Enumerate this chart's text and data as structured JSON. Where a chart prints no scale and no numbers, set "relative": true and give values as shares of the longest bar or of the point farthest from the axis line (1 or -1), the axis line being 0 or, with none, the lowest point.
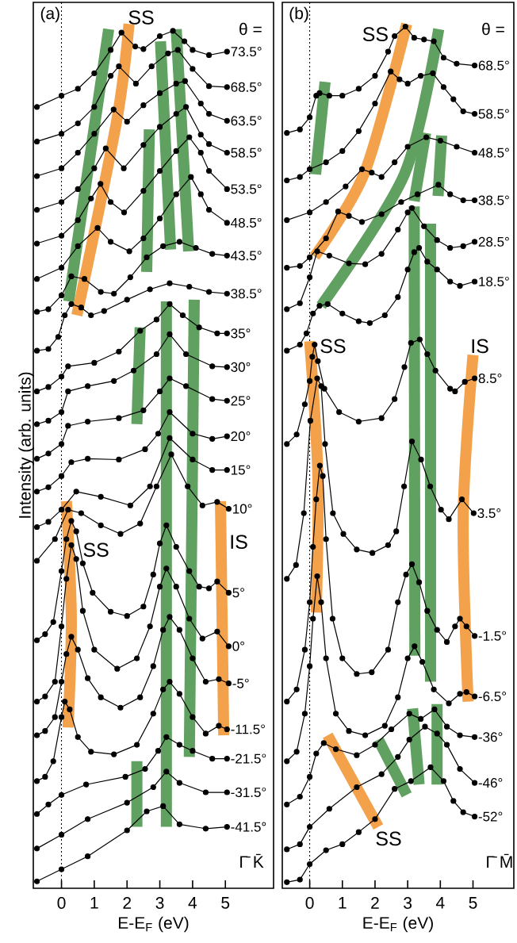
{
  "chart_data": [
    {
      "type": "line",
      "relative": true,
      "marker": "circle",
      "xlim": [
        -0.86,
        6.47
      ],
      "xticks": [
        0,
        1,
        2,
        3,
        4,
        5
      ],
      "xlabel": "E-E$_{F}$ (eV)",
      "ylabel": "Intensity (arb. units)",
      "ref_lines": [
        {
          "axis": "x",
          "value": 0,
          "line_style": "dotted"
        }
      ],
      "annotations": [
        "(a)",
        "θ =",
        "Γ̄ K̄",
        "SS",
        "SS",
        "IS"
      ],
      "series": [
        {
          "color": "#60a060",
          "marker": "none",
          "x": [
            1.44,
            0.22
          ],
          "values": [
            0.994,
            0.679
          ]
        },
        {
          "color": "#f3a24b",
          "marker": "none",
          "x": [
            2.06,
            1.68,
            0.47
          ],
          "values": [
            1.0,
            0.887,
            0.663
          ]
        },
        {
          "color": "#60a060",
          "marker": "none",
          "x": [
            2.68,
            2.6
          ],
          "values": [
            0.878,
            0.713
          ]
        },
        {
          "color": "#60a060",
          "marker": "none",
          "x": [
            3.02,
            3.33
          ],
          "values": [
            0.98,
            0.739
          ]
        },
        {
          "color": "#60a060",
          "marker": "none",
          "x": [
            3.5,
            3.88
          ],
          "values": [
            0.994,
            0.737
          ]
        },
        {
          "color": "#60a060",
          "marker": "none",
          "x": [
            2.4,
            2.3
          ],
          "values": [
            0.649,
            0.537
          ]
        },
        {
          "color": "#60a060",
          "marker": "none",
          "x": [
            3.2,
            3.2
          ],
          "values": [
            0.679,
            0.071
          ]
        },
        {
          "color": "#60a060",
          "marker": "none",
          "x": [
            4.05,
            3.9
          ],
          "values": [
            0.681,
            0.152
          ]
        },
        {
          "color": "#f3a24b",
          "marker": "none",
          "x": [
            4.85,
            4.95
          ],
          "values": [
            0.448,
            0.177
          ]
        },
        {
          "color": "#f3a24b",
          "marker": "none",
          "x": [
            0.15,
            0.3,
            0.2
          ],
          "values": [
            0.448,
            0.312,
            0.186
          ]
        },
        {
          "color": "#60a060",
          "marker": "none",
          "x": [
            2.3,
            2.3
          ],
          "values": [
            0.147,
            0.071
          ]
        },
        {
          "name": "73.5°",
          "color": "#000000",
          "x": [
            -0.75,
            0,
            0.5,
            1,
            1.5,
            1.83,
            2.25,
            2.5,
            3,
            3.4,
            3.75,
            4,
            4.5,
            5.05
          ],
          "values": [
            0.904,
            0.917,
            0.925,
            0.943,
            0.97,
            0.99,
            0.974,
            0.971,
            0.986,
            0.992,
            0.98,
            0.97,
            0.964,
            0.968
          ]
        },
        {
          "name": "68.5°",
          "color": "#000000",
          "x": [
            -0.75,
            0,
            0.5,
            1,
            1.5,
            1.75,
            2.27,
            2.75,
            3.25,
            3.55,
            4,
            4.5,
            5.05
          ],
          "values": [
            0.864,
            0.873,
            0.885,
            0.904,
            0.94,
            0.951,
            0.931,
            0.951,
            0.966,
            0.97,
            0.948,
            0.928,
            0.927
          ]
        },
        {
          "name": "63.5°",
          "color": "#000000",
          "x": [
            -0.75,
            0,
            0.5,
            1,
            1.59,
            2.0,
            2.5,
            3,
            3.5,
            3.77,
            4.25,
            4.5,
            5.05
          ],
          "values": [
            0.824,
            0.833,
            0.851,
            0.873,
            0.901,
            0.887,
            0.906,
            0.92,
            0.931,
            0.934,
            0.908,
            0.896,
            0.888
          ]
        },
        {
          "name": "58.5°",
          "color": "#000000",
          "x": [
            -0.75,
            0,
            0.5,
            1,
            1.35,
            1.9,
            2.5,
            3,
            3.5,
            3.8,
            4.25,
            4.5,
            5.05
          ],
          "values": [
            0.785,
            0.794,
            0.809,
            0.833,
            0.856,
            0.833,
            0.86,
            0.881,
            0.896,
            0.904,
            0.872,
            0.861,
            0.851
          ]
        },
        {
          "name": "53.5°",
          "color": "#000000",
          "x": [
            -0.75,
            0,
            0.5,
            0.9,
            1.19,
            1.5,
            1.91,
            2.5,
            3,
            3.5,
            3.9,
            4.25,
            4.5,
            5.05
          ],
          "values": [
            0.746,
            0.755,
            0.773,
            0.798,
            0.815,
            0.794,
            0.782,
            0.807,
            0.83,
            0.853,
            0.869,
            0.851,
            0.83,
            0.809
          ]
        },
        {
          "name": "48.5°",
          "color": "#000000",
          "x": [
            -0.75,
            0,
            0.5,
            1.1,
            1.5,
            2.07,
            2.5,
            3,
            3.5,
            3.95,
            4.25,
            4.5,
            5.05
          ],
          "values": [
            0.705,
            0.718,
            0.743,
            0.764,
            0.748,
            0.737,
            0.752,
            0.775,
            0.803,
            0.823,
            0.803,
            0.785,
            0.77
          ]
        },
        {
          "name": "43.5°",
          "color": "#000000",
          "x": [
            -0.75,
            -0.4,
            0,
            0.3,
            0.7,
            1.2,
            1.6,
            2.1,
            2.6,
            3.1,
            3.6,
            4.1,
            4.6,
            5.05
          ],
          "values": [
            0.667,
            0.67,
            0.686,
            0.708,
            0.705,
            0.69,
            0.688,
            0.707,
            0.73,
            0.743,
            0.748,
            0.741,
            0.734,
            0.732
          ]
        },
        {
          "name": "38.5°",
          "color": "#000000",
          "x": [
            -0.75,
            -0.4,
            -0.1,
            0.1,
            0.3,
            0.6,
            0.9,
            1.3,
            2,
            2.7,
            3.3,
            3.9,
            4.5,
            5.05
          ],
          "values": [
            0.622,
            0.624,
            0.638,
            0.663,
            0.676,
            0.672,
            0.663,
            0.668,
            0.681,
            0.693,
            0.7,
            0.696,
            0.69,
            0.688
          ]
        },
        {
          "name": "35°",
          "color": "#000000",
          "x": [
            -0.75,
            -0.4,
            0,
            0.2,
            1,
            1.75,
            2.4,
            2.9,
            3.3,
            3.7,
            4.2,
            4.75,
            5.05
          ],
          "values": [
            0.575,
            0.58,
            0.592,
            0.604,
            0.608,
            0.621,
            0.645,
            0.658,
            0.676,
            0.663,
            0.649,
            0.642,
            0.642
          ]
        },
        {
          "name": "30°",
          "color": "#000000",
          "x": [
            -0.75,
            -0.4,
            0,
            0.2,
            0.8,
            1.6,
            2.2,
            2.9,
            3.3,
            3.8,
            4.6,
            5.05
          ],
          "values": [
            0.537,
            0.541,
            0.551,
            0.575,
            0.581,
            0.587,
            0.599,
            0.618,
            0.641,
            0.618,
            0.604,
            0.603
          ]
        },
        {
          "name": "25°",
          "color": "#000000",
          "x": [
            -0.75,
            -0.4,
            0,
            0.2,
            0.8,
            1.75,
            2.5,
            3.0,
            3.3,
            3.8,
            4.6,
            5.05
          ],
          "values": [
            0.497,
            0.503,
            0.514,
            0.535,
            0.54,
            0.544,
            0.553,
            0.575,
            0.59,
            0.581,
            0.566,
            0.564
          ]
        },
        {
          "name": "20°",
          "color": "#000000",
          "x": [
            -0.75,
            -0.4,
            0,
            0.3,
            0.8,
            1.75,
            2.55,
            2.95,
            3.3,
            4.0,
            4.6,
            5.05
          ],
          "values": [
            0.459,
            0.464,
            0.477,
            0.493,
            0.497,
            0.496,
            0.508,
            0.526,
            0.551,
            0.526,
            0.52,
            0.523
          ]
        },
        {
          "name": "15°",
          "color": "#000000",
          "x": [
            -0.75,
            -0.4,
            0,
            0.45,
            1.2,
            2.1,
            2.7,
            3.3,
            4.0,
            4.6,
            5.05
          ],
          "values": [
            0.418,
            0.424,
            0.438,
            0.459,
            0.453,
            0.443,
            0.465,
            0.521,
            0.496,
            0.484,
            0.484
          ]
        },
        {
          "name": "10°",
          "color": "#000000",
          "x": [
            -0.75,
            -0.2,
            0.2,
            0.6,
            1.2,
            1.8,
            2.4,
            2.9,
            3.35,
            3.85,
            4.3,
            4.75,
            5.1
          ],
          "values": [
            0.379,
            0.404,
            0.438,
            0.434,
            0.42,
            0.41,
            0.422,
            0.465,
            0.502,
            0.465,
            0.443,
            0.447,
            0.439
          ]
        },
        {
          "name": "5°",
          "color": "#000000",
          "x": [
            -0.75,
            -0.5,
            -0.25,
            0,
            0.15,
            0.3,
            0.45,
            0.65,
            0.95,
            1.5,
            2.0,
            2.5,
            2.8,
            3.0,
            3.2,
            3.5,
            3.9,
            4.2,
            4.5,
            4.75,
            5.1
          ],
          "values": [
            0.287,
            0.294,
            0.308,
            0.367,
            0.404,
            0.425,
            0.413,
            0.376,
            0.342,
            0.32,
            0.315,
            0.326,
            0.363,
            0.399,
            0.42,
            0.395,
            0.367,
            0.349,
            0.347,
            0.355,
            0.342
          ]
        },
        {
          "name": "0°",
          "color": "#000000",
          "x": [
            -0.75,
            -0.5,
            -0.2,
            0,
            0.15,
            0.3,
            0.45,
            0.65,
            1.0,
            1.7,
            2.3,
            2.7,
            3.0,
            3.2,
            3.5,
            3.9,
            4.3,
            4.75,
            5.1
          ],
          "values": [
            0.216,
            0.222,
            0.239,
            0.303,
            0.358,
            0.397,
            0.381,
            0.321,
            0.276,
            0.254,
            0.266,
            0.303,
            0.349,
            0.37,
            0.349,
            0.312,
            0.289,
            0.297,
            0.28
          ]
        },
        {
          "name": "-5°",
          "color": "#000000",
          "x": [
            -0.75,
            -0.5,
            -0.2,
            0,
            0.15,
            0.3,
            0.5,
            0.8,
            1.2,
            1.8,
            2.4,
            2.8,
            3.1,
            3.3,
            3.6,
            4.0,
            4.4,
            4.8,
            5.1
          ],
          "values": [
            0.177,
            0.182,
            0.198,
            0.239,
            0.271,
            0.291,
            0.276,
            0.243,
            0.221,
            0.209,
            0.221,
            0.257,
            0.299,
            0.314,
            0.299,
            0.266,
            0.239,
            0.242,
            0.237
          ]
        },
        {
          "name": "-11.5°",
          "color": "#000000",
          "x": [
            -0.75,
            -0.5,
            -0.25,
            0,
            0.1,
            0.25,
            0.5,
            0.9,
            1.6,
            2.3,
            2.8,
            3.1,
            3.3,
            3.6,
            4.0,
            4.4,
            4.8,
            5.05
          ],
          "values": [
            0.124,
            0.129,
            0.147,
            0.198,
            0.216,
            0.207,
            0.175,
            0.158,
            0.155,
            0.166,
            0.202,
            0.23,
            0.239,
            0.225,
            0.198,
            0.179,
            0.188,
            0.184
          ]
        },
        {
          "name": "-21.5°",
          "color": "#000000",
          "x": [
            -0.75,
            -0.4,
            0,
            0.75,
            1.95,
            2.55,
            2.95,
            3.2,
            3.6,
            4.0,
            4.6,
            5.05
          ],
          "values": [
            0.086,
            0.097,
            0.108,
            0.12,
            0.129,
            0.138,
            0.159,
            0.175,
            0.166,
            0.159,
            0.15,
            0.15
          ]
        },
        {
          "name": "-31.5°",
          "color": "#000000",
          "x": [
            -0.75,
            0,
            0.8,
            2.0,
            2.8,
            3.2,
            3.6,
            4.4,
            5.05
          ],
          "values": [
            0.046,
            0.062,
            0.08,
            0.099,
            0.117,
            0.135,
            0.122,
            0.111,
            0.111
          ]
        },
        {
          "name": "-41.5°",
          "color": "#000000",
          "x": [
            -0.75,
            0,
            0.8,
            2.0,
            2.6,
            3.1,
            3.6,
            4.4,
            5.05
          ],
          "values": [
            0.008,
            0.022,
            0.037,
            0.067,
            0.089,
            0.095,
            0.074,
            0.069,
            0.071
          ]
        }
      ]
    },
    {
      "type": "line",
      "relative": true,
      "marker": "circle",
      "xlim": [
        -0.84,
        6.25
      ],
      "xticks": [
        0,
        1,
        2,
        3,
        4,
        5
      ],
      "xlabel": "E-E$_{F}$ (eV)",
      "ref_lines": [
        {
          "axis": "x",
          "value": 0,
          "line_style": "dotted"
        }
      ],
      "annotations": [
        "(b)",
        "θ =",
        "Γ̄ M̄",
        "SS",
        "SS",
        "IS",
        "SS"
      ],
      "series": [
        {
          "color": "#60a060",
          "marker": "none",
          "x": [
            0.47,
            0.18
          ],
          "values": [
            0.933,
            0.826
          ]
        },
        {
          "color": "#f3a24b",
          "marker": "none",
          "x": [
            2.97,
            1.68,
            0.15
          ],
          "values": [
            1.0,
            0.828,
            0.731
          ]
        },
        {
          "color": "#60a060",
          "marker": "none",
          "x": [
            3.95,
            2.9,
            0.35
          ],
          "values": [
            0.994,
            0.826,
            0.674
          ]
        },
        {
          "color": "#60a060",
          "marker": "none",
          "x": [
            3.55,
            3.2
          ],
          "values": [
            0.874,
            0.795
          ]
        },
        {
          "color": "#60a060",
          "marker": "none",
          "x": [
            4.04,
            3.93
          ],
          "values": [
            0.871,
            0.801
          ]
        },
        {
          "color": "#60a060",
          "marker": "none",
          "x": [
            3.2,
            3.22
          ],
          "values": [
            0.789,
            0.269
          ]
        },
        {
          "color": "#60a060",
          "marker": "none",
          "x": [
            3.7,
            3.7
          ],
          "values": [
            0.769,
            0.239
          ]
        },
        {
          "color": "#f3a24b",
          "marker": "none",
          "x": [
            0.0,
            0.25,
            0.2
          ],
          "values": [
            0.633,
            0.477,
            0.319
          ]
        },
        {
          "color": "#f3a24b",
          "marker": "none",
          "x": [
            5.0,
            4.7,
            4.85
          ],
          "values": [
            0.617,
            0.431,
            0.216
          ]
        },
        {
          "color": "#f3a24b",
          "marker": "none",
          "x": [
            0.55,
            2.1
          ],
          "values": [
            0.177,
            0.071
          ]
        },
        {
          "color": "#60a060",
          "marker": "none",
          "x": [
            2.1,
            2.97
          ],
          "values": [
            0.172,
            0.108
          ]
        },
        {
          "color": "#60a060",
          "marker": "none",
          "x": [
            3.15,
            3.35
          ],
          "values": [
            0.208,
            0.12
          ]
        },
        {
          "color": "#60a060",
          "marker": "none",
          "x": [
            3.9,
            3.9
          ],
          "values": [
            0.213,
            0.12
          ]
        },
        {
          "name": "68.5°",
          "color": "#000000",
          "x": [
            -0.7,
            -0.3,
            0,
            0.2,
            0.3,
            0.6,
            1,
            1.5,
            2,
            2.4,
            2.6,
            2.93,
            3.2,
            3.5,
            3.8,
            4.1,
            4.5,
            5.05
          ],
          "values": [
            0.874,
            0.878,
            0.892,
            0.917,
            0.92,
            0.917,
            0.917,
            0.925,
            0.94,
            0.968,
            0.986,
            0.997,
            0.984,
            0.982,
            0.98,
            0.961,
            0.954,
            0.952
          ]
        },
        {
          "name": "58.5°",
          "color": "#000000",
          "x": [
            -0.7,
            -0.3,
            0,
            0.5,
            1,
            1.5,
            2,
            2.48,
            2.75,
            3,
            3.4,
            3.77,
            4.1,
            4.4,
            4.7,
            5.05
          ],
          "values": [
            0.819,
            0.823,
            0.832,
            0.84,
            0.853,
            0.876,
            0.908,
            0.945,
            0.936,
            0.931,
            0.94,
            0.943,
            0.927,
            0.913,
            0.899,
            0.896
          ]
        },
        {
          "name": "48.5°",
          "color": "#000000",
          "x": [
            -0.7,
            0,
            0.5,
            1.1,
            1.6,
            1.9,
            2.2,
            2.6,
            3.0,
            3.57,
            4,
            4.5,
            5.05
          ],
          "values": [
            0.773,
            0.782,
            0.794,
            0.812,
            0.832,
            0.828,
            0.823,
            0.84,
            0.858,
            0.869,
            0.865,
            0.858,
            0.851
          ]
        },
        {
          "name": "38.5°",
          "color": "#000000",
          "x": [
            -0.7,
            -0.3,
            0,
            0.5,
            0.87,
            1.2,
            1.6,
            2.2,
            2.8,
            3.3,
            3.94,
            4.3,
            4.7,
            5.05
          ],
          "values": [
            0.718,
            0.72,
            0.73,
            0.752,
            0.783,
            0.778,
            0.771,
            0.78,
            0.794,
            0.803,
            0.814,
            0.803,
            0.796,
            0.796
          ]
        },
        {
          "name": "28.5°",
          "color": "#000000",
          "x": [
            -0.7,
            -0.3,
            0,
            0.23,
            0.6,
            1.2,
            1.7,
            2.2,
            2.7,
            3.0,
            3.13,
            3.5,
            3.9,
            4.3,
            4.7,
            5.05
          ],
          "values": [
            0.67,
            0.677,
            0.707,
            0.737,
            0.732,
            0.723,
            0.722,
            0.734,
            0.762,
            0.782,
            0.787,
            0.766,
            0.75,
            0.741,
            0.743,
            0.748
          ]
        },
        {
          "name": "18.5°",
          "color": "#000000",
          "x": [
            -0.7,
            -0.3,
            -0.1,
            0.1,
            0.3,
            0.55,
            1,
            1.5,
            1.84,
            2.3,
            2.7,
            3.0,
            3.2,
            3.35,
            3.6,
            3.9,
            4.3,
            4.6,
            5.05
          ],
          "values": [
            0.622,
            0.629,
            0.642,
            0.665,
            0.674,
            0.676,
            0.665,
            0.656,
            0.654,
            0.663,
            0.684,
            0.716,
            0.736,
            0.741,
            0.725,
            0.716,
            0.702,
            0.697,
            0.702
          ]
        },
        {
          "name": "8.5°",
          "color": "#000000",
          "x": [
            -0.7,
            -0.4,
            -0.15,
            0,
            0.08,
            0.15,
            0.25,
            0.45,
            0.9,
            1.5,
            2.2,
            2.6,
            2.9,
            3.1,
            3.37,
            3.6,
            3.85,
            4.3,
            4.45,
            4.75,
            5.05
          ],
          "values": [
            0.514,
            0.525,
            0.56,
            0.587,
            0.615,
            0.629,
            0.61,
            0.578,
            0.551,
            0.54,
            0.544,
            0.566,
            0.603,
            0.631,
            0.635,
            0.618,
            0.599,
            0.578,
            0.575,
            0.586,
            0.59
          ]
        },
        {
          "name": "3.5°",
          "color": "#000000",
          "x": [
            -0.7,
            -0.42,
            -0.18,
            0.02,
            0.23,
            0.35,
            0.47,
            0.71,
            1.03,
            1.44,
            1.92,
            2.4,
            2.65,
            2.89,
            3.13,
            3.41,
            3.69,
            4.02,
            4.26,
            4.66,
            5.02
          ],
          "values": [
            0.358,
            0.374,
            0.434,
            0.541,
            0.59,
            0.581,
            0.514,
            0.434,
            0.41,
            0.392,
            0.388,
            0.397,
            0.413,
            0.465,
            0.517,
            0.496,
            0.465,
            0.438,
            0.427,
            0.45,
            0.434
          ]
        },
        {
          "name": "-1.5°",
          "color": "#000000",
          "x": [
            -0.7,
            -0.4,
            -0.15,
            0,
            0.1,
            0.2,
            0.31,
            0.4,
            0.5,
            0.7,
            1,
            1.44,
            1.9,
            2.4,
            2.7,
            2.95,
            3.13,
            3.35,
            3.6,
            3.9,
            4.2,
            4.45,
            4.6,
            4.8,
            5.05
          ],
          "values": [
            0.216,
            0.23,
            0.276,
            0.331,
            0.395,
            0.45,
            0.489,
            0.477,
            0.404,
            0.312,
            0.266,
            0.248,
            0.25,
            0.276,
            0.331,
            0.363,
            0.375,
            0.354,
            0.321,
            0.299,
            0.285,
            0.303,
            0.312,
            0.303,
            0.292
          ]
        },
        {
          "name": "-6.5°",
          "color": "#000000",
          "x": [
            -0.7,
            -0.4,
            -0.15,
            0,
            0.1,
            0.23,
            0.35,
            0.5,
            0.8,
            1.2,
            1.7,
            2.3,
            2.7,
            3.0,
            3.21,
            3.45,
            3.8,
            4.26,
            4.6,
            4.8,
            5.05
          ],
          "values": [
            0.147,
            0.158,
            0.202,
            0.257,
            0.312,
            0.361,
            0.331,
            0.266,
            0.202,
            0.182,
            0.177,
            0.188,
            0.221,
            0.266,
            0.28,
            0.262,
            0.23,
            0.214,
            0.225,
            0.227,
            0.222
          ]
        },
        {
          "name": "-36°",
          "color": "#000000",
          "x": [
            -0.7,
            -0.3,
            0,
            0.2,
            0.43,
            0.8,
            1.44,
            2,
            2.5,
            3.05,
            3.4,
            3.82,
            4.2,
            4.6,
            5.05
          ],
          "values": [
            0.097,
            0.106,
            0.129,
            0.156,
            0.168,
            0.161,
            0.154,
            0.166,
            0.184,
            0.202,
            0.196,
            0.207,
            0.187,
            0.177,
            0.175
          ]
        },
        {
          "name": "-46°",
          "color": "#000000",
          "x": [
            -0.7,
            -0.3,
            0,
            0.6,
            1.44,
            2.2,
            2.7,
            3.05,
            3.53,
            3.9,
            4.2,
            4.6,
            5.05
          ],
          "values": [
            0.045,
            0.051,
            0.071,
            0.092,
            0.117,
            0.132,
            0.152,
            0.172,
            0.187,
            0.179,
            0.166,
            0.138,
            0.122
          ]
        },
        {
          "name": "-52°",
          "color": "#000000",
          "x": [
            -0.7,
            -0.3,
            0,
            0.5,
            1,
            1.5,
            2,
            2.6,
            3.1,
            3.7,
            4.1,
            4.4,
            4.7,
            5.05
          ],
          "values": [
            0.007,
            0.01,
            0.028,
            0.044,
            0.051,
            0.065,
            0.08,
            0.115,
            0.124,
            0.14,
            0.124,
            0.101,
            0.088,
            0.083
          ]
        }
      ]
    }
  ]
}
